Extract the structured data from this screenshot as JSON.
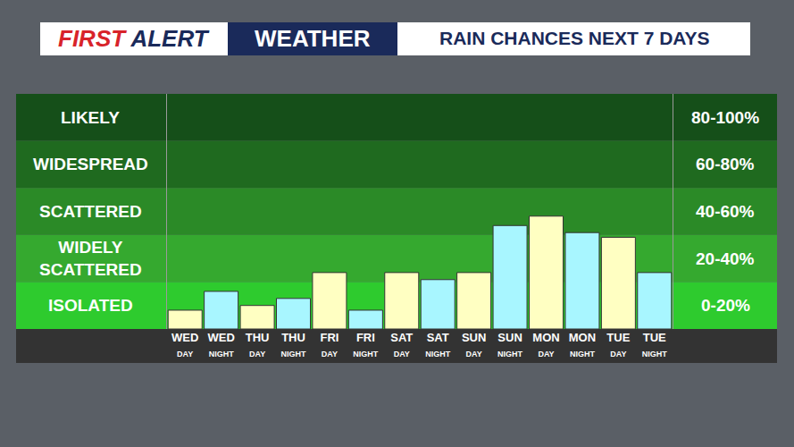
{
  "chart_data": {
    "type": "bar",
    "title": "RAIN CHANCES NEXT 7 DAYS",
    "annotations": [
      "FIRST ALERT",
      "WEATHER"
    ],
    "categories": [
      "WED DAY",
      "WED NIGHT",
      "THU DAY",
      "THU NIGHT",
      "FRI DAY",
      "FRI NIGHT",
      "SAT DAY",
      "SAT NIGHT",
      "SUN DAY",
      "SUN NIGHT",
      "MON DAY",
      "MON NIGHT",
      "TUE DAY",
      "TUE NIGHT"
    ],
    "values": [
      8,
      16,
      10,
      13,
      24,
      8,
      24,
      21,
      24,
      44,
      48,
      41,
      39,
      24
    ],
    "colors": [
      "#ffffc2",
      "#a8f6ff",
      "#ffffc2",
      "#a8f6ff",
      "#ffffc2",
      "#a8f6ff",
      "#ffffc2",
      "#a8f6ff",
      "#ffffc2",
      "#a8f6ff",
      "#ffffc2",
      "#a8f6ff",
      "#ffffc2",
      "#a8f6ff"
    ],
    "ylim": [
      0,
      100
    ],
    "bands": [
      {
        "label": "LIKELY",
        "range_label": "80-100%",
        "from": 80,
        "to": 100,
        "color": "#154f19"
      },
      {
        "label": "WIDESPREAD",
        "range_label": "60-80%",
        "from": 60,
        "to": 80,
        "color": "#1f6a1f"
      },
      {
        "label": "SCATTERED",
        "range_label": "40-60%",
        "from": 40,
        "to": 60,
        "color": "#2b8a27"
      },
      {
        "label": "WIDELY SCATTERED",
        "range_label": "20-40%",
        "from": 20,
        "to": 40,
        "color": "#35a92f"
      },
      {
        "label": "ISOLATED",
        "range_label": "0-20%",
        "from": 0,
        "to": 20,
        "color": "#2ecb2e"
      }
    ],
    "grid": false,
    "tick_labels": "x"
  }
}
